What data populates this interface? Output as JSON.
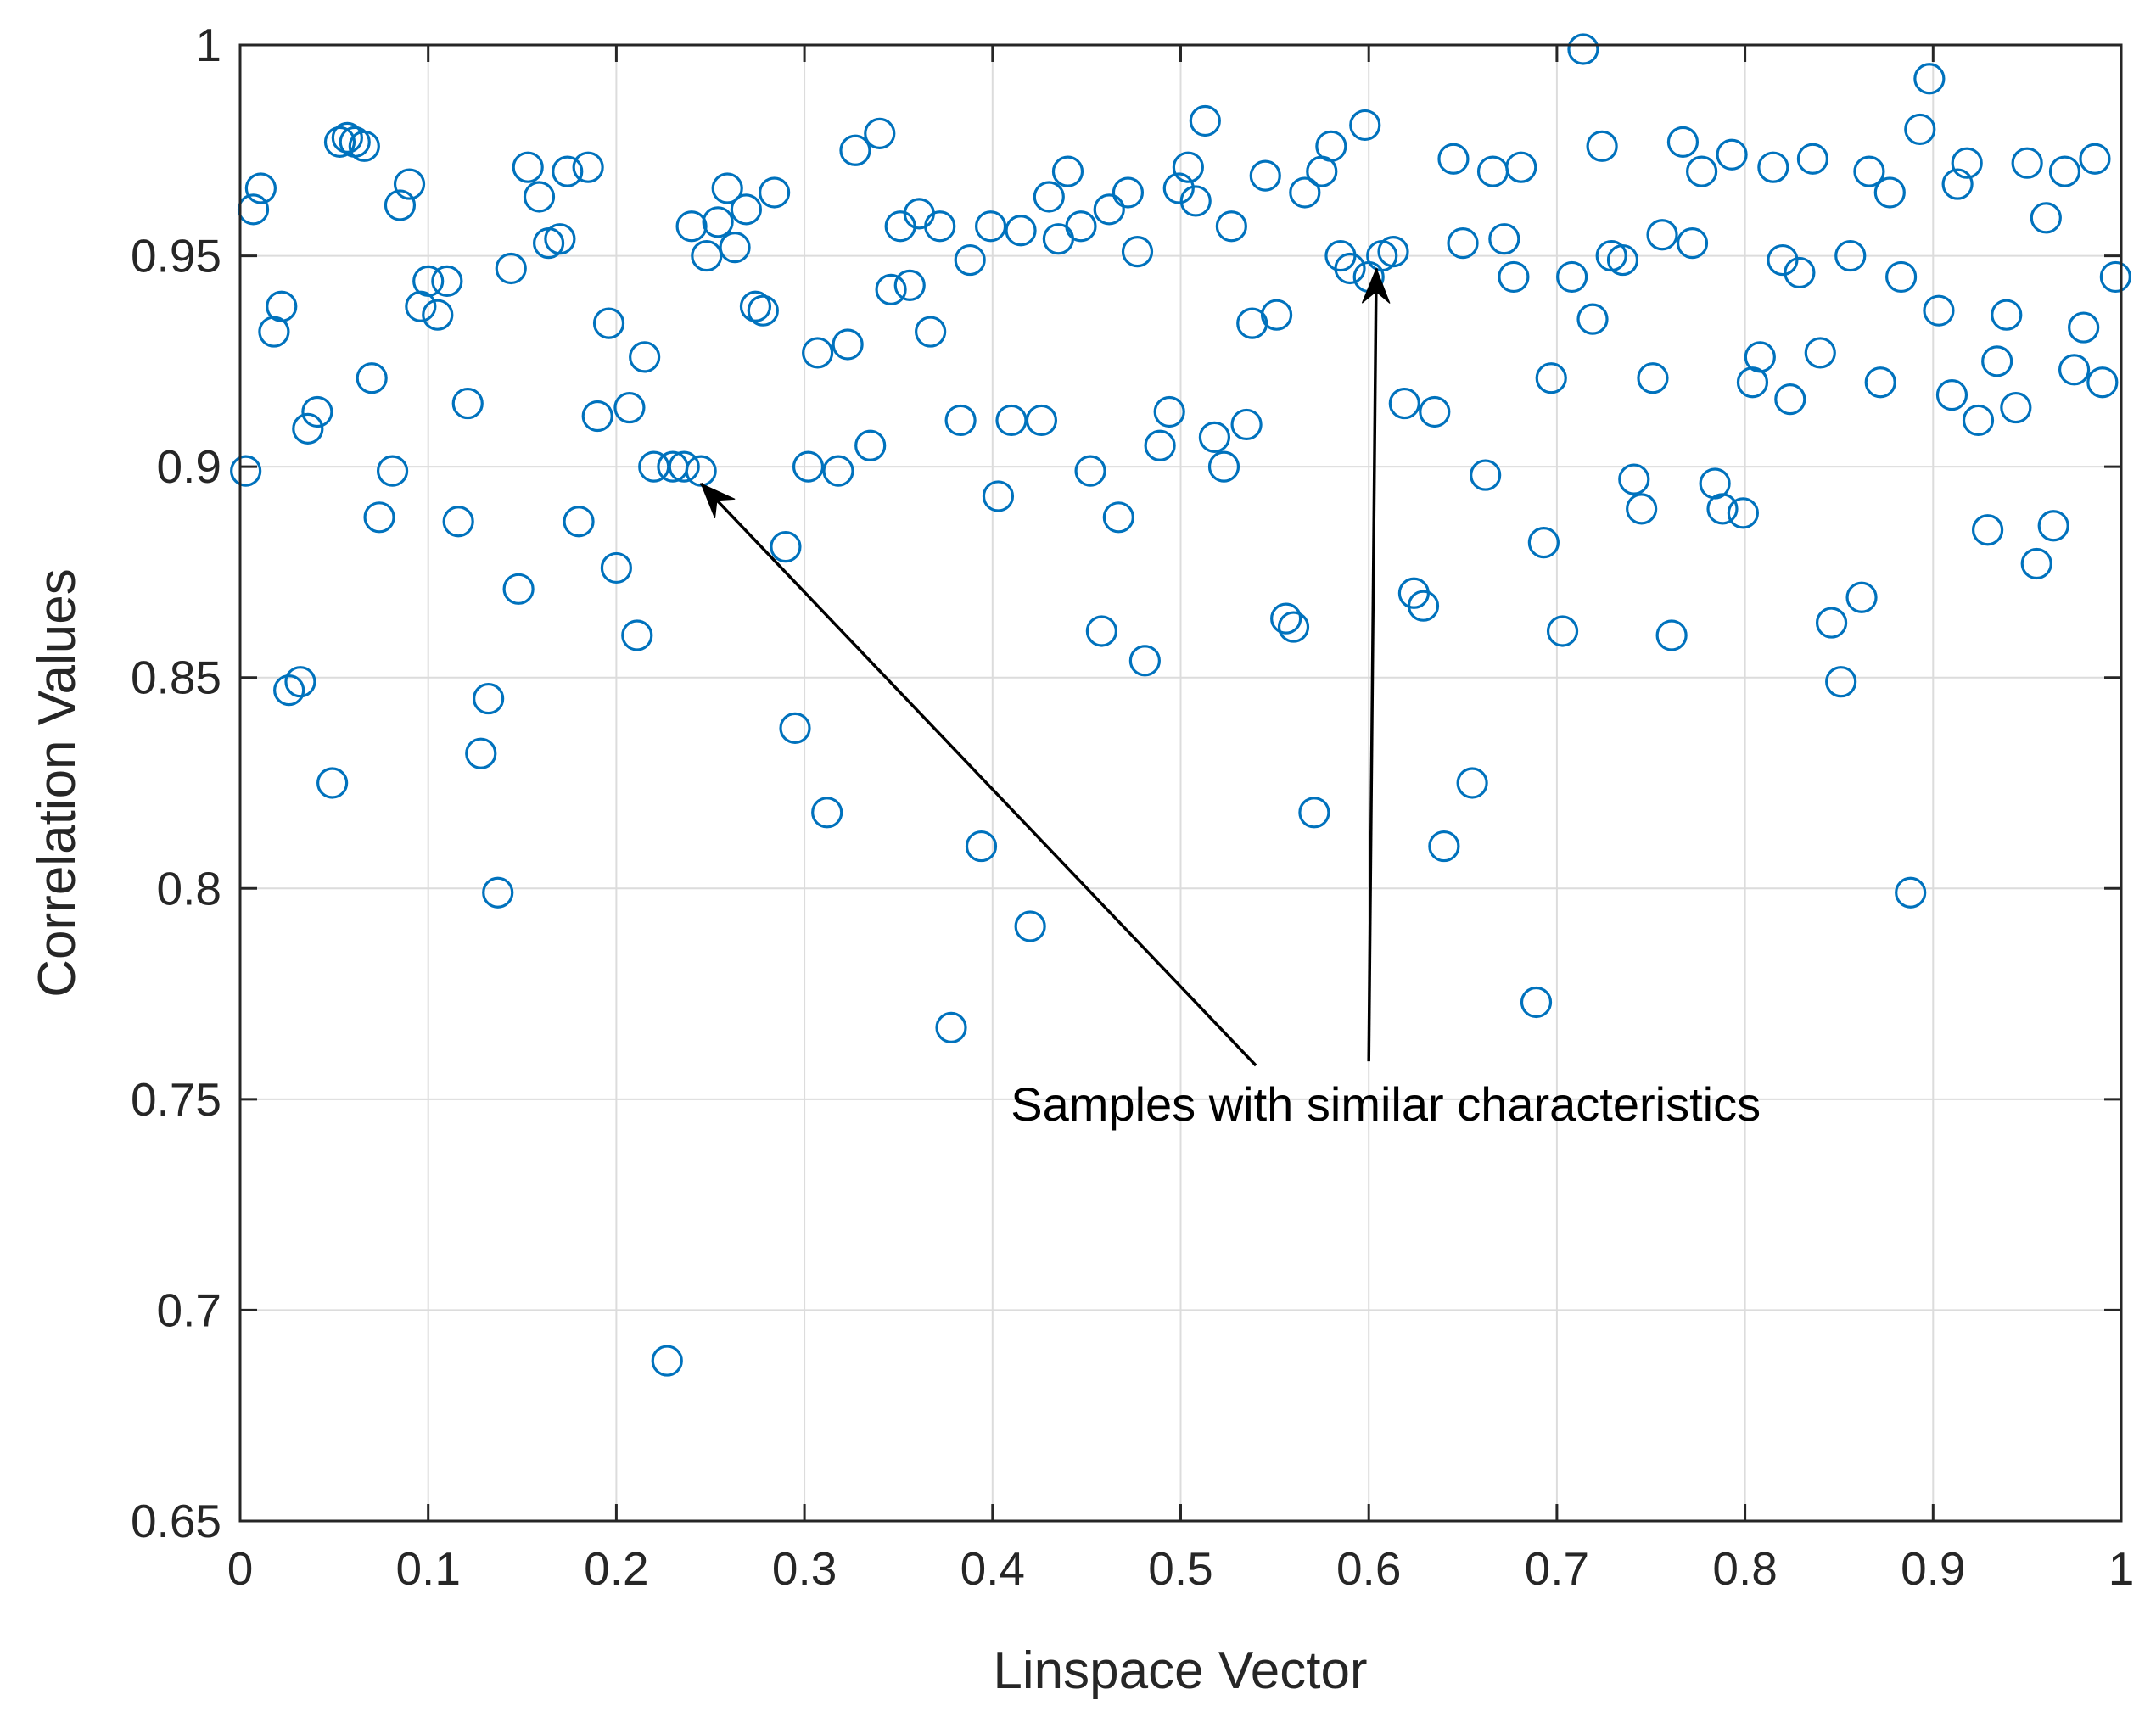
{
  "chart_data": {
    "type": "scatter",
    "title": "",
    "xlabel": "Linspace Vector",
    "ylabel": "Correlation Values",
    "xlim": [
      0,
      1
    ],
    "ylim": [
      0.65,
      1
    ],
    "grid": true,
    "marker": "open-circle",
    "series_color": "#0072BD",
    "x_ticks": [
      0,
      0.1,
      0.2,
      0.3,
      0.4,
      0.5,
      0.6,
      0.7,
      0.8,
      0.9,
      1
    ],
    "y_ticks": [
      0.65,
      0.7,
      0.75,
      0.8,
      0.85,
      0.9,
      0.95,
      1
    ],
    "x_tick_labels": [
      "0",
      "0.1",
      "0.2",
      "0.3",
      "0.4",
      "0.5",
      "0.6",
      "0.7",
      "0.8",
      "0.9",
      "1"
    ],
    "y_tick_labels": [
      "0.65",
      "0.7",
      "0.75",
      "0.8",
      "0.85",
      "0.9",
      "0.95",
      "1"
    ],
    "annotation": {
      "text": "Samples with similar characteristics",
      "text_anchor_point": {
        "x": 0.6,
        "y": 0.749
      },
      "arrows": [
        {
          "from": {
            "x": 0.54,
            "y": 0.758
          },
          "to": {
            "x": 0.245,
            "y": 0.896
          }
        },
        {
          "from": {
            "x": 0.6,
            "y": 0.759
          },
          "to": {
            "x": 0.604,
            "y": 0.947
          }
        }
      ]
    },
    "points": [
      [
        0.003,
        0.899
      ],
      [
        0.007,
        0.961
      ],
      [
        0.011,
        0.966
      ],
      [
        0.018,
        0.932
      ],
      [
        0.022,
        0.938
      ],
      [
        0.026,
        0.847
      ],
      [
        0.032,
        0.849
      ],
      [
        0.036,
        0.909
      ],
      [
        0.041,
        0.913
      ],
      [
        0.049,
        0.825
      ],
      [
        0.053,
        0.977
      ],
      [
        0.057,
        0.978
      ],
      [
        0.061,
        0.977
      ],
      [
        0.066,
        0.976
      ],
      [
        0.07,
        0.921
      ],
      [
        0.074,
        0.888
      ],
      [
        0.081,
        0.899
      ],
      [
        0.085,
        0.962
      ],
      [
        0.09,
        0.967
      ],
      [
        0.096,
        0.938
      ],
      [
        0.1,
        0.944
      ],
      [
        0.105,
        0.936
      ],
      [
        0.11,
        0.944
      ],
      [
        0.116,
        0.887
      ],
      [
        0.121,
        0.915
      ],
      [
        0.128,
        0.832
      ],
      [
        0.132,
        0.845
      ],
      [
        0.137,
        0.799
      ],
      [
        0.144,
        0.947
      ],
      [
        0.148,
        0.871
      ],
      [
        0.153,
        0.971
      ],
      [
        0.159,
        0.964
      ],
      [
        0.164,
        0.953
      ],
      [
        0.17,
        0.954
      ],
      [
        0.174,
        0.97
      ],
      [
        0.18,
        0.887
      ],
      [
        0.185,
        0.971
      ],
      [
        0.19,
        0.912
      ],
      [
        0.196,
        0.934
      ],
      [
        0.2,
        0.876
      ],
      [
        0.207,
        0.914
      ],
      [
        0.211,
        0.86
      ],
      [
        0.215,
        0.926
      ],
      [
        0.22,
        0.9
      ],
      [
        0.227,
        0.688
      ],
      [
        0.23,
        0.9
      ],
      [
        0.236,
        0.9
      ],
      [
        0.24,
        0.957
      ],
      [
        0.245,
        0.899
      ],
      [
        0.248,
        0.95
      ],
      [
        0.254,
        0.958
      ],
      [
        0.259,
        0.966
      ],
      [
        0.263,
        0.952
      ],
      [
        0.269,
        0.961
      ],
      [
        0.274,
        0.938
      ],
      [
        0.278,
        0.937
      ],
      [
        0.284,
        0.965
      ],
      [
        0.29,
        0.881
      ],
      [
        0.295,
        0.838
      ],
      [
        0.302,
        0.9
      ],
      [
        0.307,
        0.927
      ],
      [
        0.312,
        0.818
      ],
      [
        0.318,
        0.899
      ],
      [
        0.323,
        0.929
      ],
      [
        0.327,
        0.975
      ],
      [
        0.335,
        0.905
      ],
      [
        0.34,
        0.979
      ],
      [
        0.346,
        0.942
      ],
      [
        0.351,
        0.957
      ],
      [
        0.356,
        0.943
      ],
      [
        0.361,
        0.96
      ],
      [
        0.367,
        0.932
      ],
      [
        0.372,
        0.957
      ],
      [
        0.378,
        0.767
      ],
      [
        0.383,
        0.911
      ],
      [
        0.388,
        0.949
      ],
      [
        0.394,
        0.81
      ],
      [
        0.399,
        0.957
      ],
      [
        0.403,
        0.893
      ],
      [
        0.41,
        0.911
      ],
      [
        0.415,
        0.956
      ],
      [
        0.42,
        0.791
      ],
      [
        0.426,
        0.911
      ],
      [
        0.43,
        0.964
      ],
      [
        0.435,
        0.954
      ],
      [
        0.44,
        0.97
      ],
      [
        0.447,
        0.957
      ],
      [
        0.452,
        0.899
      ],
      [
        0.458,
        0.861
      ],
      [
        0.462,
        0.961
      ],
      [
        0.467,
        0.888
      ],
      [
        0.472,
        0.965
      ],
      [
        0.477,
        0.951
      ],
      [
        0.481,
        0.854
      ],
      [
        0.489,
        0.905
      ],
      [
        0.494,
        0.913
      ],
      [
        0.499,
        0.966
      ],
      [
        0.504,
        0.971
      ],
      [
        0.508,
        0.963
      ],
      [
        0.513,
        0.982
      ],
      [
        0.518,
        0.907
      ],
      [
        0.523,
        0.9
      ],
      [
        0.527,
        0.957
      ],
      [
        0.535,
        0.91
      ],
      [
        0.538,
        0.934
      ],
      [
        0.545,
        0.969
      ],
      [
        0.551,
        0.936
      ],
      [
        0.556,
        0.864
      ],
      [
        0.56,
        0.862
      ],
      [
        0.566,
        0.965
      ],
      [
        0.571,
        0.818
      ],
      [
        0.575,
        0.97
      ],
      [
        0.58,
        0.976
      ],
      [
        0.585,
        0.95
      ],
      [
        0.59,
        0.947
      ],
      [
        0.598,
        0.981
      ],
      [
        0.6,
        0.945
      ],
      [
        0.607,
        0.95
      ],
      [
        0.613,
        0.951
      ],
      [
        0.619,
        0.915
      ],
      [
        0.624,
        0.87
      ],
      [
        0.629,
        0.867
      ],
      [
        0.635,
        0.913
      ],
      [
        0.64,
        0.81
      ],
      [
        0.645,
        0.973
      ],
      [
        0.65,
        0.953
      ],
      [
        0.655,
        0.825
      ],
      [
        0.662,
        0.898
      ],
      [
        0.666,
        0.97
      ],
      [
        0.672,
        0.954
      ],
      [
        0.677,
        0.945
      ],
      [
        0.681,
        0.971
      ],
      [
        0.689,
        0.773
      ],
      [
        0.693,
        0.882
      ],
      [
        0.697,
        0.921
      ],
      [
        0.703,
        0.861
      ],
      [
        0.708,
        0.945
      ],
      [
        0.714,
        0.999
      ],
      [
        0.719,
        0.935
      ],
      [
        0.724,
        0.976
      ],
      [
        0.729,
        0.95
      ],
      [
        0.735,
        0.949
      ],
      [
        0.741,
        0.897
      ],
      [
        0.745,
        0.89
      ],
      [
        0.751,
        0.921
      ],
      [
        0.756,
        0.955
      ],
      [
        0.761,
        0.86
      ],
      [
        0.767,
        0.977
      ],
      [
        0.772,
        0.953
      ],
      [
        0.777,
        0.97
      ],
      [
        0.784,
        0.896
      ],
      [
        0.788,
        0.89
      ],
      [
        0.793,
        0.974
      ],
      [
        0.799,
        0.889
      ],
      [
        0.804,
        0.92
      ],
      [
        0.808,
        0.926
      ],
      [
        0.815,
        0.971
      ],
      [
        0.82,
        0.949
      ],
      [
        0.824,
        0.916
      ],
      [
        0.829,
        0.946
      ],
      [
        0.836,
        0.973
      ],
      [
        0.84,
        0.927
      ],
      [
        0.846,
        0.863
      ],
      [
        0.851,
        0.849
      ],
      [
        0.856,
        0.95
      ],
      [
        0.862,
        0.869
      ],
      [
        0.866,
        0.97
      ],
      [
        0.872,
        0.92
      ],
      [
        0.877,
        0.965
      ],
      [
        0.883,
        0.945
      ],
      [
        0.888,
        0.799
      ],
      [
        0.893,
        0.98
      ],
      [
        0.898,
        0.992
      ],
      [
        0.903,
        0.937
      ],
      [
        0.91,
        0.917
      ],
      [
        0.913,
        0.967
      ],
      [
        0.918,
        0.972
      ],
      [
        0.924,
        0.911
      ],
      [
        0.929,
        0.885
      ],
      [
        0.934,
        0.925
      ],
      [
        0.939,
        0.936
      ],
      [
        0.944,
        0.914
      ],
      [
        0.95,
        0.972
      ],
      [
        0.955,
        0.877
      ],
      [
        0.96,
        0.959
      ],
      [
        0.964,
        0.886
      ],
      [
        0.97,
        0.97
      ],
      [
        0.975,
        0.923
      ],
      [
        0.98,
        0.933
      ],
      [
        0.986,
        0.973
      ],
      [
        0.99,
        0.92
      ],
      [
        0.997,
        0.945
      ]
    ]
  }
}
